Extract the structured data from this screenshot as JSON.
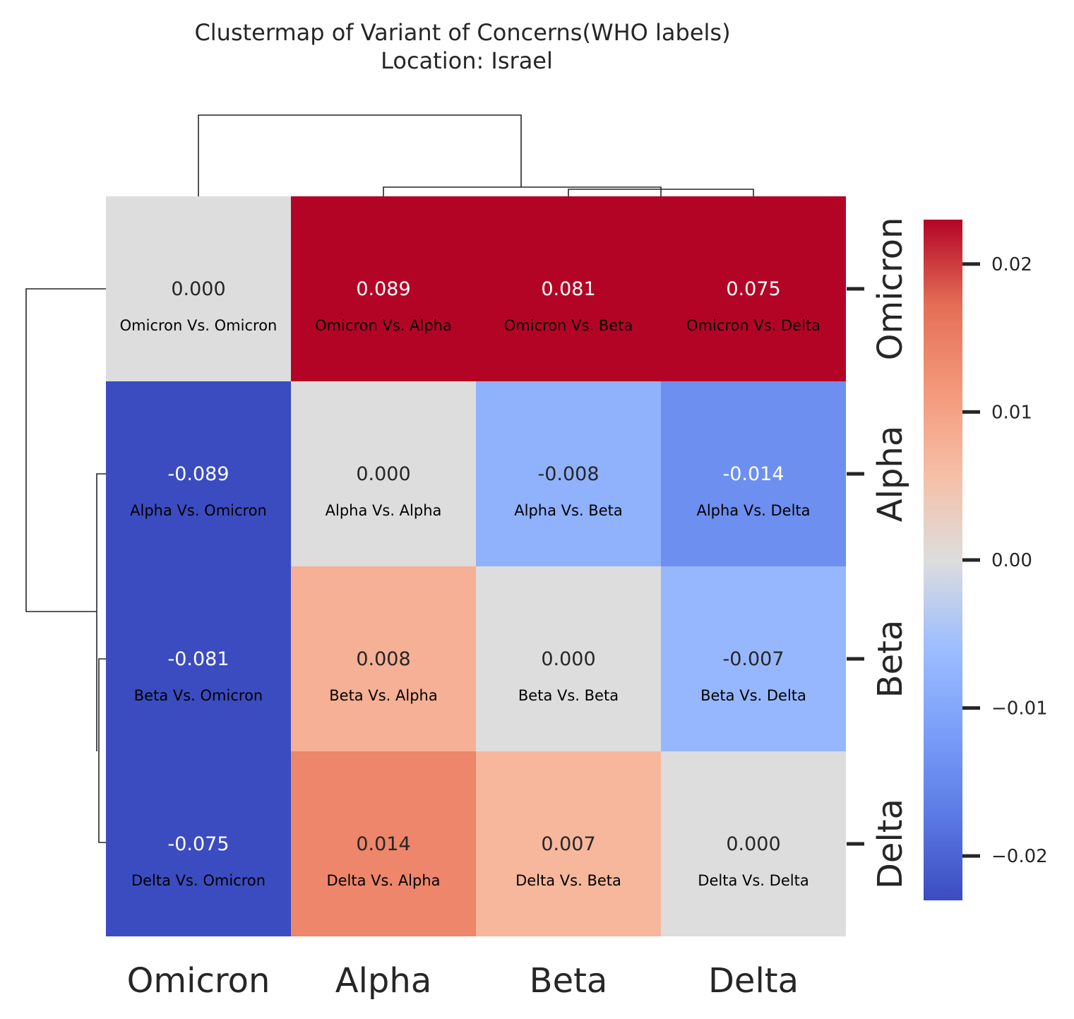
{
  "chart_data": {
    "type": "heatmap",
    "title": "Clustermap of Variant of Concerns(WHO labels)",
    "subtitle": "Location: Israel",
    "rows": [
      "Omicron",
      "Alpha",
      "Beta",
      "Delta"
    ],
    "columns": [
      "Omicron",
      "Alpha",
      "Beta",
      "Delta"
    ],
    "values": [
      [
        0.0,
        0.089,
        0.081,
        0.075
      ],
      [
        -0.089,
        0.0,
        -0.008,
        -0.014
      ],
      [
        -0.081,
        0.008,
        0.0,
        -0.007
      ],
      [
        -0.075,
        0.014,
        0.007,
        0.0
      ]
    ],
    "value_labels": [
      [
        "0.000",
        "0.089",
        "0.081",
        "0.075"
      ],
      [
        "-0.089",
        "0.000",
        "-0.008",
        "-0.014"
      ],
      [
        "-0.081",
        "0.008",
        "0.000",
        "-0.007"
      ],
      [
        "-0.075",
        "0.014",
        "0.007",
        "0.000"
      ]
    ],
    "cell_labels": [
      [
        "Omicron Vs. Omicron",
        "Omicron Vs. Alpha",
        "Omicron Vs. Beta",
        "Omicron Vs. Delta"
      ],
      [
        "Alpha Vs. Omicron",
        "Alpha Vs. Alpha",
        "Alpha Vs. Beta",
        "Alpha Vs. Delta"
      ],
      [
        "Beta Vs. Omicron",
        "Beta Vs. Alpha",
        "Beta Vs. Beta",
        "Beta Vs. Delta"
      ],
      [
        "Delta Vs. Omicron",
        "Delta Vs. Alpha",
        "Delta Vs. Beta",
        "Delta Vs. Delta"
      ]
    ],
    "colormap": "coolwarm",
    "colorbar": {
      "vmin": -0.023,
      "vmax": 0.023,
      "ticks": [
        0.02,
        0.01,
        0.0,
        -0.01,
        -0.02
      ],
      "tick_labels": [
        "0.02",
        "0.01",
        "0.00",
        "−0.01",
        "−0.02"
      ]
    },
    "dendrogram": "rows and columns clustered; Omicron separates from Alpha, Beta, Delta",
    "colors": {
      "text_dark": "#262626",
      "text_light": "#ffffff",
      "sublabel": "#000000"
    }
  }
}
